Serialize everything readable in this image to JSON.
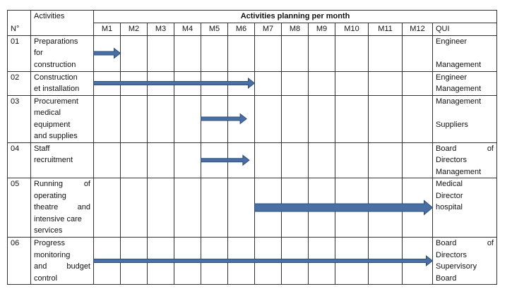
{
  "header": {
    "no_label": "N°",
    "activities_label": "Activities",
    "planning_label": "Activities planning per month",
    "qui_label": "QUI",
    "months": [
      "M1",
      "M2",
      "M3",
      "M4",
      "M5",
      "M6",
      "M7",
      "M8",
      "M9",
      "M10",
      "M11",
      "M12"
    ]
  },
  "rows": [
    {
      "no": "01",
      "activity_lines": [
        "Preparations",
        "for",
        "construction"
      ],
      "qui_lines": [
        "Engineer",
        "",
        "Management"
      ],
      "start_month": 1,
      "end_month": 2,
      "arrow_style": "thin"
    },
    {
      "no": "02",
      "activity_lines": [
        "Construction",
        "et installation"
      ],
      "qui_lines": [
        "Engineer",
        "Management"
      ],
      "start_month": 1,
      "end_month": 7,
      "arrow_style": "thin"
    },
    {
      "no": "03",
      "activity_lines": [
        "Procurement",
        "medical",
        "equipment",
        "and supplies"
      ],
      "qui_lines": [
        "Management",
        "",
        "Suppliers"
      ],
      "start_month": 5,
      "end_month": 6.7,
      "arrow_style": "thin"
    },
    {
      "no": "04",
      "activity_lines": [
        "Staff",
        "recruitment"
      ],
      "qui_lines": [
        "Board of",
        "Directors",
        "Management"
      ],
      "start_month": 5,
      "end_month": 6.8,
      "arrow_style": "thin"
    },
    {
      "no": "05",
      "activity_lines": [
        "Running of",
        "operating",
        "theatre and",
        "intensive care",
        "services"
      ],
      "qui_lines": [
        "Medical",
        "Director",
        "hospital"
      ],
      "start_month": 7,
      "end_month": 13,
      "arrow_style": "thick"
    },
    {
      "no": "06",
      "activity_lines": [
        "Progress",
        "monitoring",
        "and budget",
        "control"
      ],
      "qui_lines": [
        "Board of",
        "Directors",
        "Supervisory",
        "Board"
      ],
      "start_month": 1,
      "end_month": 13,
      "arrow_style": "thin"
    }
  ],
  "colors": {
    "arrow_fill": "#4a6fa5",
    "arrow_stroke": "#2f4f7a",
    "border": "#333333"
  }
}
